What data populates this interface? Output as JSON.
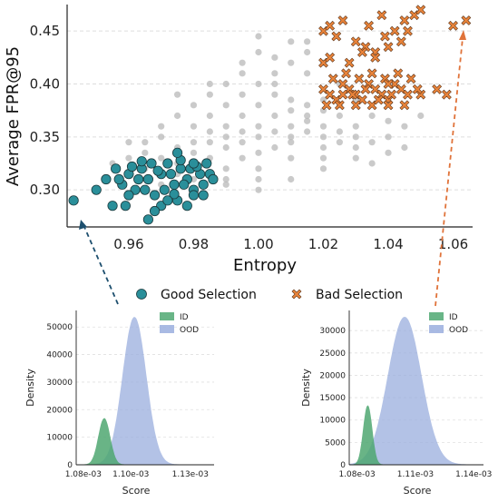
{
  "chart_data": [
    {
      "type": "scatter",
      "title": "",
      "xlabel": "Entropy",
      "ylabel": "Average FPR@95",
      "xlim": [
        0.941,
        1.066
      ],
      "ylim": [
        0.265,
        0.475
      ],
      "xticks": [
        "0.96",
        "0.98",
        "1.00",
        "1.02",
        "1.04",
        "1.06"
      ],
      "xtick_values": [
        0.96,
        0.98,
        1.0,
        1.02,
        1.04,
        1.06
      ],
      "yticks": [
        "0.30",
        "0.35",
        "0.40",
        "0.45"
      ],
      "ytick_values": [
        0.3,
        0.35,
        0.4,
        0.45
      ],
      "grid": "horizontal-dashed",
      "legend_position": "below",
      "series": [
        {
          "name": "",
          "color": "#b8b8b8",
          "marker": "circle",
          "points": [
            [
              0.97,
              0.33
            ],
            [
              0.975,
              0.34
            ],
            [
              0.98,
              0.335
            ],
            [
              0.985,
              0.345
            ],
            [
              0.99,
              0.35
            ],
            [
              0.995,
              0.345
            ],
            [
              1.0,
              0.36
            ],
            [
              1.005,
              0.37
            ],
            [
              1.01,
              0.375
            ],
            [
              1.015,
              0.38
            ],
            [
              1.02,
              0.385
            ],
            [
              0.99,
              0.32
            ],
            [
              0.995,
              0.33
            ],
            [
              1.0,
              0.335
            ],
            [
              1.005,
              0.34
            ],
            [
              1.01,
              0.35
            ],
            [
              1.015,
              0.355
            ],
            [
              1.02,
              0.36
            ],
            [
              1.025,
              0.37
            ],
            [
              0.98,
              0.36
            ],
            [
              0.985,
              0.37
            ],
            [
              0.99,
              0.38
            ],
            [
              0.995,
              0.39
            ],
            [
              1.0,
              0.4
            ],
            [
              1.005,
              0.41
            ],
            [
              1.01,
              0.42
            ],
            [
              1.015,
              0.43
            ],
            [
              0.975,
              0.315
            ],
            [
              0.98,
              0.31
            ],
            [
              0.99,
              0.31
            ],
            [
              1.0,
              0.31
            ],
            [
              1.0,
              0.32
            ],
            [
              1.01,
              0.33
            ],
            [
              1.02,
              0.34
            ],
            [
              1.03,
              0.35
            ],
            [
              1.03,
              0.36
            ],
            [
              1.025,
              0.355
            ],
            [
              1.035,
              0.345
            ],
            [
              1.04,
              0.35
            ],
            [
              1.045,
              0.34
            ],
            [
              0.965,
              0.345
            ],
            [
              0.97,
              0.36
            ],
            [
              0.975,
              0.37
            ],
            [
              0.98,
              0.38
            ],
            [
              0.985,
              0.39
            ],
            [
              0.99,
              0.4
            ],
            [
              0.995,
              0.41
            ],
            [
              1.005,
              0.425
            ],
            [
              1.01,
              0.44
            ],
            [
              1.0,
              0.445
            ],
            [
              0.96,
              0.33
            ],
            [
              0.955,
              0.325
            ],
            [
              0.96,
              0.345
            ],
            [
              0.965,
              0.32
            ],
            [
              0.97,
              0.305
            ],
            [
              0.98,
              0.3
            ],
            [
              0.99,
              0.305
            ],
            [
              1.0,
              0.3
            ],
            [
              1.01,
              0.31
            ],
            [
              1.02,
              0.32
            ],
            [
              1.02,
              0.33
            ],
            [
              1.025,
              0.345
            ],
            [
              1.015,
              0.365
            ],
            [
              1.01,
              0.385
            ],
            [
              1.005,
              0.39
            ],
            [
              1.0,
              0.38
            ],
            [
              0.995,
              0.37
            ],
            [
              0.99,
              0.36
            ],
            [
              0.985,
              0.355
            ],
            [
              1.035,
              0.37
            ],
            [
              1.04,
              0.365
            ],
            [
              1.03,
              0.385
            ],
            [
              0.995,
              0.355
            ],
            [
              1.005,
              0.355
            ],
            [
              1.01,
              0.36
            ],
            [
              1.015,
              0.37
            ],
            [
              1.02,
              0.375
            ],
            [
              1.025,
              0.38
            ],
            [
              0.985,
              0.33
            ],
            [
              0.975,
              0.325
            ],
            [
              0.965,
              0.335
            ],
            [
              1.045,
              0.36
            ],
            [
              1.05,
              0.37
            ],
            [
              1.03,
              0.33
            ],
            [
              1.035,
              0.325
            ],
            [
              1.04,
              0.335
            ],
            [
              0.97,
              0.35
            ],
            [
              0.98,
              0.345
            ],
            [
              0.99,
              0.34
            ],
            [
              1.0,
              0.35
            ],
            [
              1.01,
              0.345
            ],
            [
              1.02,
              0.35
            ],
            [
              1.03,
              0.34
            ],
            [
              0.995,
              0.42
            ],
            [
              1.005,
              0.4
            ],
            [
              1.015,
              0.41
            ],
            [
              1.02,
              0.42
            ],
            [
              1.025,
              0.4
            ],
            [
              0.985,
              0.4
            ],
            [
              0.975,
              0.39
            ],
            [
              1.0,
              0.43
            ],
            [
              1.015,
              0.44
            ]
          ]
        },
        {
          "name": "Good Selection",
          "color": "#2a8f9a",
          "marker": "circle",
          "points": [
            [
              0.943,
              0.29
            ],
            [
              0.955,
              0.285
            ],
            [
              0.958,
              0.305
            ],
            [
              0.96,
              0.315
            ],
            [
              0.962,
              0.3
            ],
            [
              0.964,
              0.32
            ],
            [
              0.966,
              0.31
            ],
            [
              0.968,
              0.295
            ],
            [
              0.97,
              0.315
            ],
            [
              0.972,
              0.325
            ],
            [
              0.974,
              0.305
            ],
            [
              0.976,
              0.32
            ],
            [
              0.978,
              0.31
            ],
            [
              0.98,
              0.3
            ],
            [
              0.982,
              0.315
            ],
            [
              0.984,
              0.325
            ],
            [
              0.97,
              0.285
            ],
            [
              0.975,
              0.29
            ],
            [
              0.98,
              0.295
            ],
            [
              0.965,
              0.3
            ],
            [
              0.96,
              0.295
            ],
            [
              0.957,
              0.31
            ],
            [
              0.967,
              0.325
            ],
            [
              0.973,
              0.315
            ],
            [
              0.977,
              0.305
            ],
            [
              0.983,
              0.305
            ],
            [
              0.985,
              0.315
            ],
            [
              0.979,
              0.32
            ],
            [
              0.971,
              0.3
            ],
            [
              0.963,
              0.31
            ],
            [
              0.968,
              0.28
            ],
            [
              0.966,
              0.272
            ],
            [
              0.95,
              0.3
            ],
            [
              0.953,
              0.31
            ],
            [
              0.976,
              0.328
            ],
            [
              0.981,
              0.322
            ],
            [
              0.969,
              0.318
            ],
            [
              0.961,
              0.322
            ],
            [
              0.974,
              0.296
            ],
            [
              0.986,
              0.31
            ],
            [
              0.959,
              0.285
            ],
            [
              0.972,
              0.29
            ],
            [
              0.978,
              0.285
            ],
            [
              0.983,
              0.295
            ],
            [
              0.956,
              0.32
            ],
            [
              0.964,
              0.327
            ],
            [
              0.98,
              0.325
            ],
            [
              0.975,
              0.335
            ]
          ]
        },
        {
          "name": "Bad Selection",
          "color": "#e8833a",
          "marker": "x",
          "points": [
            [
              1.02,
              0.395
            ],
            [
              1.022,
              0.39
            ],
            [
              1.024,
              0.385
            ],
            [
              1.026,
              0.4
            ],
            [
              1.028,
              0.395
            ],
            [
              1.03,
              0.39
            ],
            [
              1.032,
              0.385
            ],
            [
              1.034,
              0.4
            ],
            [
              1.036,
              0.395
            ],
            [
              1.038,
              0.39
            ],
            [
              1.04,
              0.385
            ],
            [
              1.042,
              0.4
            ],
            [
              1.044,
              0.395
            ],
            [
              1.046,
              0.39
            ],
            [
              1.021,
              0.38
            ],
            [
              1.025,
              0.38
            ],
            [
              1.03,
              0.38
            ],
            [
              1.035,
              0.38
            ],
            [
              1.04,
              0.38
            ],
            [
              1.045,
              0.38
            ],
            [
              1.023,
              0.405
            ],
            [
              1.027,
              0.41
            ],
            [
              1.031,
              0.405
            ],
            [
              1.035,
              0.41
            ],
            [
              1.039,
              0.405
            ],
            [
              1.043,
              0.41
            ],
            [
              1.047,
              0.405
            ],
            [
              1.02,
              0.45
            ],
            [
              1.022,
              0.455
            ],
            [
              1.024,
              0.445
            ],
            [
              1.026,
              0.46
            ],
            [
              1.03,
              0.44
            ],
            [
              1.033,
              0.435
            ],
            [
              1.036,
              0.43
            ],
            [
              1.039,
              0.445
            ],
            [
              1.042,
              0.45
            ],
            [
              1.045,
              0.46
            ],
            [
              1.048,
              0.465
            ],
            [
              1.05,
              0.47
            ],
            [
              1.02,
              0.42
            ],
            [
              1.022,
              0.425
            ],
            [
              1.028,
              0.42
            ],
            [
              1.032,
              0.43
            ],
            [
              1.036,
              0.425
            ],
            [
              1.04,
              0.435
            ],
            [
              1.044,
              0.44
            ],
            [
              1.046,
              0.45
            ],
            [
              1.05,
              0.39
            ],
            [
              1.055,
              0.395
            ],
            [
              1.058,
              0.39
            ],
            [
              1.06,
              0.455
            ],
            [
              1.064,
              0.46
            ],
            [
              1.034,
              0.455
            ],
            [
              1.038,
              0.465
            ],
            [
              1.04,
              0.4
            ],
            [
              1.049,
              0.395
            ],
            [
              1.029,
              0.39
            ],
            [
              1.037,
              0.385
            ],
            [
              1.041,
              0.39
            ],
            [
              1.033,
              0.395
            ],
            [
              1.026,
              0.39
            ]
          ]
        }
      ]
    },
    {
      "type": "area",
      "title": "",
      "xlabel": "Score",
      "ylabel": "Density",
      "xlim": [
        1.077,
        1.135
      ],
      "ylim": [
        0,
        56000
      ],
      "xticks": [
        "1.08e-03",
        "1.10e-03",
        "1.13e-03"
      ],
      "xtick_values": [
        1.08,
        1.1,
        1.125
      ],
      "yticks": [
        "0",
        "10000",
        "20000",
        "30000",
        "40000",
        "50000"
      ],
      "ytick_values": [
        0,
        10000,
        20000,
        30000,
        40000,
        50000
      ],
      "legend_position": "top-right",
      "series": [
        {
          "name": "ID",
          "color": "#4fa872",
          "mean": 1.0888,
          "sd": 0.0024,
          "peak": 16800
        },
        {
          "name": "OOD",
          "color": "#9aaede",
          "mean": 1.1015,
          "sd": 0.0049,
          "peak": 53500
        }
      ]
    },
    {
      "type": "area",
      "title": "",
      "xlabel": "Score",
      "ylabel": "Density",
      "xlim": [
        1.076,
        1.145
      ],
      "ylim": [
        0,
        34500
      ],
      "xticks": [
        "1.08e-03",
        "1.11e-03",
        "1.14e-03"
      ],
      "xtick_values": [
        1.08,
        1.11,
        1.14
      ],
      "yticks": [
        "0",
        "5000",
        "10000",
        "15000",
        "20000",
        "25000",
        "30000"
      ],
      "ytick_values": [
        0,
        5000,
        10000,
        15000,
        20000,
        25000,
        30000
      ],
      "legend_position": "top-right",
      "series": [
        {
          "name": "ID",
          "color": "#4fa872",
          "mean": 1.0855,
          "sd": 0.0022,
          "peak": 13200
        },
        {
          "name": "OOD",
          "color": "#9aaede",
          "mean": 1.1045,
          "sd": 0.0085,
          "peak": 33000
        }
      ]
    }
  ]
}
